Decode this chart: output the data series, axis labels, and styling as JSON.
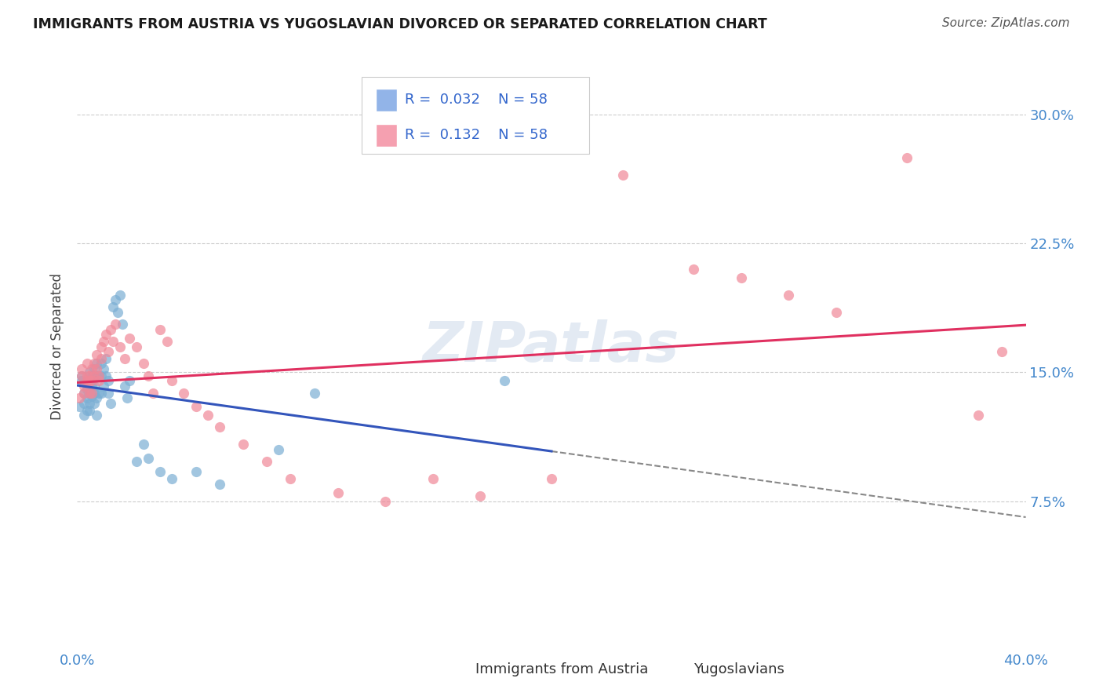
{
  "title": "IMMIGRANTS FROM AUSTRIA VS YUGOSLAVIAN DIVORCED OR SEPARATED CORRELATION CHART",
  "source": "Source: ZipAtlas.com",
  "ylabel": "Divorced or Separated",
  "ytick_values": [
    0.075,
    0.15,
    0.225,
    0.3
  ],
  "ytick_labels": [
    "7.5%",
    "15.0%",
    "22.5%",
    "30.0%"
  ],
  "xlim": [
    0.0,
    0.4
  ],
  "ylim": [
    0.0,
    0.33
  ],
  "blue_color": "#7bafd4",
  "pink_color": "#f08898",
  "trendline_blue": "#3355bb",
  "trendline_pink": "#e03060",
  "watermark": "ZIPatlas",
  "legend_entry1_R": "0.032",
  "legend_entry1_N": "58",
  "legend_entry2_R": "0.132",
  "legend_entry2_N": "58",
  "legend_blue": "#92b4e8",
  "legend_pink": "#f5a0b0",
  "austria_x": [
    0.001,
    0.002,
    0.002,
    0.003,
    0.003,
    0.003,
    0.004,
    0.004,
    0.004,
    0.004,
    0.005,
    0.005,
    0.005,
    0.005,
    0.005,
    0.006,
    0.006,
    0.006,
    0.006,
    0.007,
    0.007,
    0.007,
    0.007,
    0.007,
    0.008,
    0.008,
    0.008,
    0.008,
    0.009,
    0.009,
    0.01,
    0.01,
    0.01,
    0.011,
    0.011,
    0.012,
    0.012,
    0.013,
    0.013,
    0.014,
    0.015,
    0.016,
    0.017,
    0.018,
    0.019,
    0.02,
    0.021,
    0.022,
    0.025,
    0.028,
    0.03,
    0.035,
    0.04,
    0.05,
    0.06,
    0.085,
    0.1,
    0.18
  ],
  "austria_y": [
    0.13,
    0.145,
    0.148,
    0.125,
    0.132,
    0.138,
    0.14,
    0.128,
    0.135,
    0.142,
    0.138,
    0.145,
    0.15,
    0.132,
    0.128,
    0.145,
    0.148,
    0.142,
    0.136,
    0.152,
    0.148,
    0.138,
    0.132,
    0.142,
    0.155,
    0.148,
    0.135,
    0.125,
    0.148,
    0.138,
    0.155,
    0.148,
    0.138,
    0.152,
    0.142,
    0.158,
    0.148,
    0.145,
    0.138,
    0.132,
    0.188,
    0.192,
    0.185,
    0.195,
    0.178,
    0.142,
    0.135,
    0.145,
    0.098,
    0.108,
    0.1,
    0.092,
    0.088,
    0.092,
    0.085,
    0.105,
    0.138,
    0.145
  ],
  "yugo_x": [
    0.001,
    0.002,
    0.002,
    0.003,
    0.003,
    0.004,
    0.004,
    0.004,
    0.005,
    0.005,
    0.005,
    0.006,
    0.006,
    0.006,
    0.007,
    0.007,
    0.008,
    0.008,
    0.009,
    0.009,
    0.01,
    0.01,
    0.011,
    0.012,
    0.013,
    0.014,
    0.015,
    0.016,
    0.018,
    0.02,
    0.022,
    0.025,
    0.028,
    0.03,
    0.032,
    0.035,
    0.038,
    0.04,
    0.045,
    0.05,
    0.055,
    0.06,
    0.07,
    0.08,
    0.09,
    0.11,
    0.13,
    0.15,
    0.17,
    0.2,
    0.23,
    0.26,
    0.28,
    0.3,
    0.32,
    0.35,
    0.38,
    0.39
  ],
  "yugo_y": [
    0.135,
    0.148,
    0.152,
    0.142,
    0.138,
    0.145,
    0.148,
    0.155,
    0.138,
    0.145,
    0.148,
    0.152,
    0.145,
    0.138,
    0.155,
    0.148,
    0.16,
    0.152,
    0.148,
    0.145,
    0.165,
    0.158,
    0.168,
    0.172,
    0.162,
    0.175,
    0.168,
    0.178,
    0.165,
    0.158,
    0.17,
    0.165,
    0.155,
    0.148,
    0.138,
    0.175,
    0.168,
    0.145,
    0.138,
    0.13,
    0.125,
    0.118,
    0.108,
    0.098,
    0.088,
    0.08,
    0.075,
    0.088,
    0.078,
    0.088,
    0.265,
    0.21,
    0.205,
    0.195,
    0.185,
    0.275,
    0.125,
    0.162
  ]
}
